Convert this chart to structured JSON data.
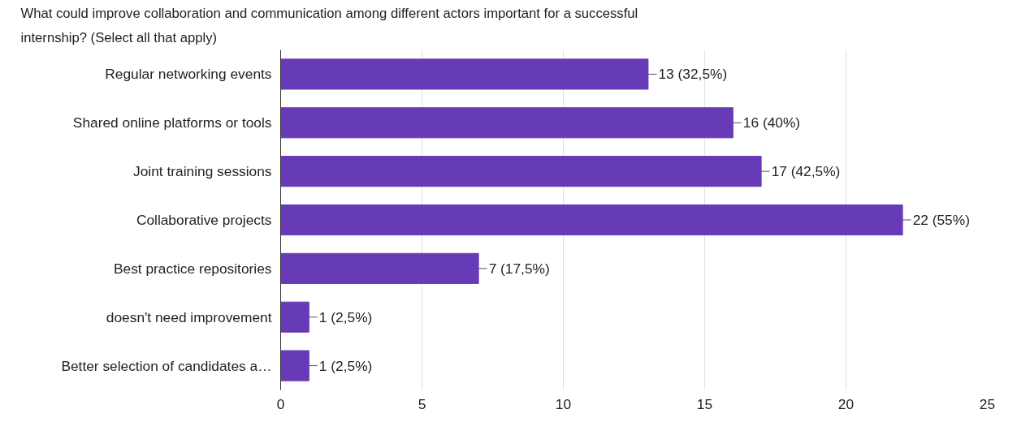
{
  "chart_data": {
    "type": "bar",
    "orientation": "horizontal",
    "title": "What could improve collaboration and communication among different actors important for a successful internship? (Select all that apply)",
    "categories": [
      "Regular networking events",
      "Shared online platforms or tools",
      "Joint training sessions",
      "Collaborative projects",
      "Best practice repositories",
      "doesn't need improvement",
      "Better selection of candidates a…"
    ],
    "values": [
      13,
      16,
      17,
      22,
      7,
      1,
      1
    ],
    "value_labels": [
      "13 (32,5%)",
      "16 (40%)",
      "17 (42,5%)",
      "22 (55%)",
      "7 (17,5%)",
      "1 (2,5%)",
      "1 (2,5%)"
    ],
    "color": "#673ab7",
    "xlim": [
      0,
      25
    ],
    "xticks": [
      0,
      5,
      10,
      15,
      20,
      25
    ],
    "grid": "x"
  }
}
